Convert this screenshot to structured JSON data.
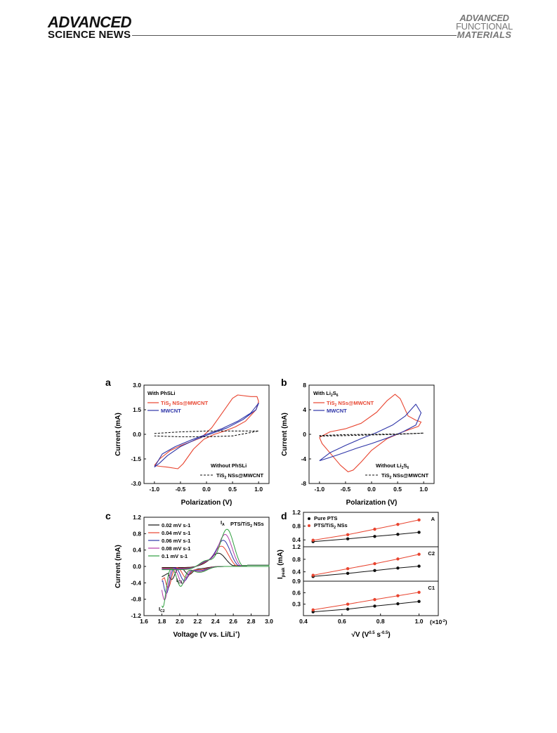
{
  "header": {
    "logo_left_line1": "ADVANCED",
    "logo_left_line2": "SCIENCE NEWS",
    "logo_right_line1": "ADVANCED",
    "logo_right_line2": "FUNCTIONAL",
    "logo_right_line3": "MATERIALS"
  },
  "colors": {
    "red": "#e8442f",
    "blue": "#2e35a8",
    "black": "#111111"
  },
  "chart_data": [
    {
      "panel": "a",
      "type": "line",
      "xlabel": "Polarization (V)",
      "ylabel": "Current (mA)",
      "xlim": [
        -1.2,
        1.2
      ],
      "ylim": [
        -3.0,
        3.0
      ],
      "xticks": [
        "-1.0",
        "-0.5",
        "0.0",
        "0.5",
        "1.0"
      ],
      "yticks": [
        "3.0",
        "1.5",
        "0.0",
        "-1.5",
        "-3.0"
      ],
      "annotations": [
        "With PhSLi",
        "Without PhSLi"
      ],
      "series": [
        {
          "name": "TiS2 NSs@MWCNT",
          "style": "red-solid",
          "points": [
            [
              -1.0,
              -1.9
            ],
            [
              -0.9,
              -1.5
            ],
            [
              -0.7,
              -1.0
            ],
            [
              -0.5,
              -0.7
            ],
            [
              -0.3,
              -0.45
            ],
            [
              -0.1,
              -0.2
            ],
            [
              0.1,
              0.4
            ],
            [
              0.3,
              1.3
            ],
            [
              0.5,
              2.2
            ],
            [
              0.6,
              2.4
            ],
            [
              0.85,
              2.3
            ],
            [
              0.97,
              2.3
            ],
            [
              1.0,
              2.0
            ],
            [
              0.95,
              1.5
            ],
            [
              0.75,
              0.8
            ],
            [
              0.55,
              0.45
            ],
            [
              0.35,
              0.2
            ],
            [
              0.15,
              0.0
            ],
            [
              -0.05,
              -0.3
            ],
            [
              -0.25,
              -0.9
            ],
            [
              -0.45,
              -1.8
            ],
            [
              -0.55,
              -2.1
            ],
            [
              -0.75,
              -2.0
            ],
            [
              -0.9,
              -1.95
            ],
            [
              -1.0,
              -1.9
            ]
          ]
        },
        {
          "name": "MWCNT",
          "style": "blue-solid",
          "points": [
            [
              -1.0,
              -2.0
            ],
            [
              -0.85,
              -1.2
            ],
            [
              -0.6,
              -0.75
            ],
            [
              -0.3,
              -0.35
            ],
            [
              0.0,
              0.0
            ],
            [
              0.3,
              0.35
            ],
            [
              0.6,
              0.8
            ],
            [
              0.85,
              1.3
            ],
            [
              1.0,
              1.9
            ],
            [
              0.95,
              1.5
            ],
            [
              0.7,
              0.9
            ],
            [
              0.4,
              0.4
            ],
            [
              0.1,
              0.05
            ],
            [
              -0.2,
              -0.3
            ],
            [
              -0.5,
              -0.75
            ],
            [
              -0.75,
              -1.3
            ],
            [
              -0.9,
              -1.75
            ],
            [
              -1.0,
              -2.0
            ]
          ]
        },
        {
          "name": "TiS2 NSs@MWCNT",
          "style": "black-dashed",
          "points": [
            [
              -1.0,
              0.05
            ],
            [
              -0.5,
              0.15
            ],
            [
              0.0,
              0.2
            ],
            [
              0.5,
              0.2
            ],
            [
              1.0,
              0.2
            ],
            [
              0.5,
              -0.1
            ],
            [
              0.0,
              -0.15
            ],
            [
              -0.5,
              -0.15
            ],
            [
              -1.0,
              -0.1
            ]
          ]
        }
      ]
    },
    {
      "panel": "b",
      "type": "line",
      "xlabel": "Polarization (V)",
      "ylabel": "Current (mA)",
      "xlim": [
        -1.2,
        1.2
      ],
      "ylim": [
        -8,
        8
      ],
      "xticks": [
        "-1.0",
        "-0.5",
        "0.0",
        "0.5",
        "1.0"
      ],
      "yticks": [
        "8",
        "4",
        "0",
        "-4",
        "-8"
      ],
      "annotations": [
        "With Li2S6",
        "Without Li2S6"
      ],
      "series": [
        {
          "name": "TiS2 NSs@MWCNT",
          "style": "red-solid",
          "points": [
            [
              -1.0,
              -0.5
            ],
            [
              -0.8,
              0.4
            ],
            [
              -0.5,
              0.9
            ],
            [
              -0.2,
              1.8
            ],
            [
              0.1,
              3.6
            ],
            [
              0.3,
              5.5
            ],
            [
              0.45,
              6.5
            ],
            [
              0.55,
              5.8
            ],
            [
              0.7,
              3.0
            ],
            [
              0.85,
              2.3
            ],
            [
              0.95,
              2.0
            ],
            [
              0.9,
              1.3
            ],
            [
              0.6,
              0.4
            ],
            [
              0.3,
              -0.7
            ],
            [
              0.0,
              -2.6
            ],
            [
              -0.2,
              -4.5
            ],
            [
              -0.35,
              -5.8
            ],
            [
              -0.45,
              -6.1
            ],
            [
              -0.6,
              -5.0
            ],
            [
              -0.8,
              -3.0
            ],
            [
              -0.95,
              -1.5
            ],
            [
              -1.0,
              -0.5
            ]
          ]
        },
        {
          "name": "MWCNT",
          "style": "blue-solid",
          "points": [
            [
              -1.0,
              -4.3
            ],
            [
              -0.8,
              -3.0
            ],
            [
              -0.5,
              -1.8
            ],
            [
              -0.2,
              -0.7
            ],
            [
              0.1,
              0.3
            ],
            [
              0.4,
              1.5
            ],
            [
              0.65,
              3.0
            ],
            [
              0.85,
              4.9
            ],
            [
              0.95,
              3.5
            ],
            [
              0.85,
              1.5
            ],
            [
              0.6,
              0.4
            ],
            [
              0.3,
              -0.6
            ],
            [
              0.0,
              -1.5
            ],
            [
              -0.3,
              -2.3
            ],
            [
              -0.6,
              -3.2
            ],
            [
              -0.85,
              -3.9
            ],
            [
              -1.0,
              -4.3
            ]
          ]
        },
        {
          "name": "TiS2 NSs@MWCNT",
          "style": "black-dashed",
          "points": [
            [
              -1.0,
              -0.3
            ],
            [
              -0.5,
              -0.2
            ],
            [
              0.0,
              -0.1
            ],
            [
              0.5,
              0.0
            ],
            [
              1.0,
              0.2
            ],
            [
              0.5,
              0.05
            ],
            [
              0.0,
              0.0
            ],
            [
              -0.5,
              -0.05
            ],
            [
              -1.0,
              -0.2
            ]
          ]
        }
      ]
    },
    {
      "panel": "c",
      "type": "line",
      "xlabel": "Voltage (V vs. Li/Li+)",
      "ylabel": "Current (mA)",
      "xlim": [
        1.6,
        3.0
      ],
      "ylim": [
        -1.2,
        1.2
      ],
      "xticks": [
        "1.6",
        "1.8",
        "2.0",
        "2.2",
        "2.4",
        "2.6",
        "2.8",
        "3.0"
      ],
      "yticks": [
        "1.2",
        "0.8",
        "0.4",
        "0.0",
        "-0.4",
        "-0.8",
        "-1.2"
      ],
      "annotations": [
        "PTS/TiS2 NSs",
        "IA",
        "IC1",
        "IC2"
      ],
      "series": [
        {
          "name": "0.02 mV s-1",
          "color": "#111111",
          "ca": 0.33,
          "aPeak": 2.44,
          "c1": 0.18,
          "c2": 0.32,
          "c2v": 1.91,
          "c1v": 2.1
        },
        {
          "name": "0.04 mV s-1",
          "color": "#e8442f",
          "ca": 0.52,
          "aPeak": 2.47,
          "c1": 0.26,
          "c2": 0.52,
          "c2v": 1.87,
          "c1v": 2.07
        },
        {
          "name": "0.06 mV s-1",
          "color": "#2e35a8",
          "ca": 0.68,
          "aPeak": 2.49,
          "c1": 0.34,
          "c2": 0.66,
          "c2v": 1.85,
          "c1v": 2.05
        },
        {
          "name": "0.08 mV s-1",
          "color": "#b23aa8",
          "ca": 0.84,
          "aPeak": 2.51,
          "c1": 0.41,
          "c2": 0.82,
          "c2v": 1.83,
          "c1v": 2.03
        },
        {
          "name": "0.1 mV s-1",
          "color": "#2f9e3f",
          "ca": 0.98,
          "aPeak": 2.53,
          "c1": 0.48,
          "c2": 1.0,
          "c2v": 1.81,
          "c1v": 2.01
        }
      ]
    },
    {
      "panel": "d",
      "type": "scatter",
      "xlabel": "√V (V0.5 s-0.5)",
      "ylabel": "Ipeak (mA)",
      "x_unit_note": "(×10-2)",
      "xlim": [
        0.4,
        1.1
      ],
      "xticks": [
        "0.4",
        "0.6",
        "0.8",
        "1.0"
      ],
      "x": [
        0.45,
        0.63,
        0.77,
        0.89,
        1.0
      ],
      "legend": [
        "Pure PTS",
        "PTS/TiS2 NSs"
      ],
      "subpanels": [
        {
          "label": "A",
          "ylim": [
            0.2,
            1.2
          ],
          "yticks": [
            "1.2",
            "0.8",
            "0.4"
          ],
          "series": [
            {
              "name": "Pure PTS",
              "color": "#111111",
              "values": [
                0.35,
                0.43,
                0.5,
                0.56,
                0.62
              ]
            },
            {
              "name": "PTS/TiS2 NSs",
              "color": "#e8442f",
              "values": [
                0.39,
                0.55,
                0.71,
                0.85,
                0.98
              ]
            }
          ]
        },
        {
          "label": "C2",
          "ylim": [
            0.1,
            1.2
          ],
          "yticks": [
            "1.2",
            "0.8",
            "0.4"
          ],
          "series": [
            {
              "name": "Pure PTS",
              "color": "#111111",
              "values": [
                0.25,
                0.35,
                0.44,
                0.52,
                0.58
              ]
            },
            {
              "name": "PTS/TiS2 NSs",
              "color": "#e8442f",
              "values": [
                0.29,
                0.5,
                0.66,
                0.81,
                0.96
              ]
            }
          ]
        },
        {
          "label": "C1",
          "ylim": [
            0.0,
            0.9
          ],
          "yticks": [
            "0.9",
            "0.6",
            "0.3"
          ],
          "series": [
            {
              "name": "Pure PTS",
              "color": "#111111",
              "values": [
                0.1,
                0.17,
                0.25,
                0.31,
                0.37
              ]
            },
            {
              "name": "PTS/TiS2 NSs",
              "color": "#e8442f",
              "values": [
                0.15,
                0.3,
                0.42,
                0.52,
                0.61
              ]
            }
          ]
        }
      ]
    }
  ]
}
